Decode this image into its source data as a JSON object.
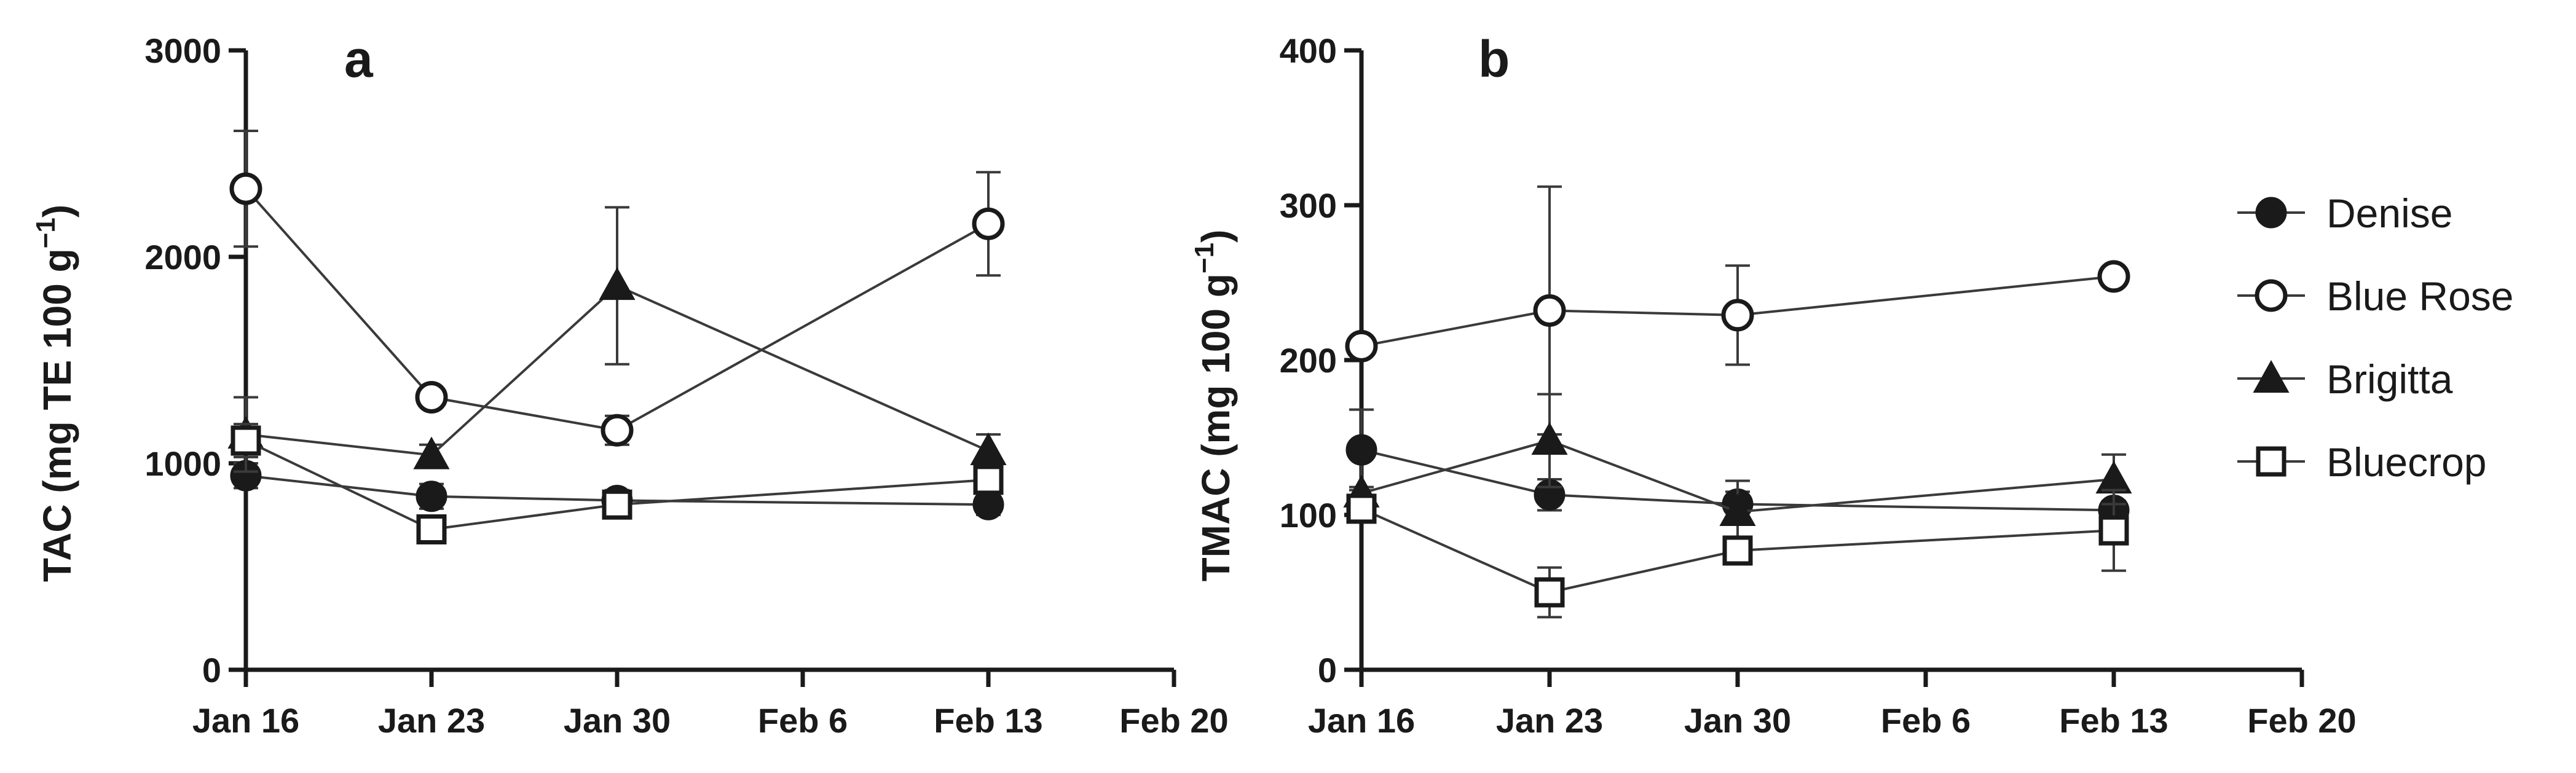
{
  "chart_data": [
    {
      "type": "line",
      "panel_label": "a",
      "title": "",
      "ylabel": "TAC  (mg TE 100 g",
      "ylabel_superscript": "−1",
      "ylabel_suffix": ")",
      "ylim": [
        0,
        3000
      ],
      "yticks": [
        0,
        1000,
        2000,
        3000
      ],
      "ytick_labels": [
        "0",
        "1000",
        "2000",
        "3000"
      ],
      "x_unit": "day",
      "xtick_labels": [
        "Jan 16",
        "Jan 23",
        "Jan 30",
        "Feb 6",
        "Feb 13",
        "Feb 20"
      ],
      "xticks": [
        0,
        7,
        14,
        21,
        28,
        35
      ],
      "xlim": [
        0,
        35
      ],
      "grid": false,
      "series": [
        {
          "name": "Denise",
          "marker": "filled-circle",
          "x": [
            0,
            7,
            14,
            28
          ],
          "y": [
            940,
            840,
            820,
            800
          ],
          "err": [
            60,
            60,
            50,
            50
          ]
        },
        {
          "name": "Blue Rose",
          "marker": "open-circle",
          "x": [
            0,
            7,
            14,
            28
          ],
          "y": [
            2330,
            1320,
            1160,
            2160
          ],
          "err": [
            280,
            40,
            70,
            250
          ]
        },
        {
          "name": "Brigitta",
          "marker": "filled-triangle",
          "x": [
            0,
            7,
            14,
            28
          ],
          "y": [
            1140,
            1040,
            1860,
            1060
          ],
          "err": [
            180,
            50,
            380,
            80
          ]
        },
        {
          "name": "Bluecrop",
          "marker": "open-square",
          "x": [
            0,
            7,
            14,
            28
          ],
          "y": [
            1110,
            680,
            800,
            920
          ],
          "err": [
            80,
            60,
            40,
            50
          ]
        }
      ]
    },
    {
      "type": "line",
      "panel_label": "b",
      "title": "",
      "ylabel": "TMAC (mg 100 g",
      "ylabel_superscript": "−1",
      "ylabel_suffix": ")",
      "ylim": [
        0,
        400
      ],
      "yticks": [
        0,
        100,
        200,
        300,
        400
      ],
      "ytick_labels": [
        "0",
        "100",
        "200",
        "300",
        "400"
      ],
      "x_unit": "day",
      "xtick_labels": [
        "Jan 16",
        "Jan 23",
        "Jan 30",
        "Feb 6",
        "Feb 13",
        "Feb 20"
      ],
      "xticks": [
        0,
        7,
        14,
        21,
        28,
        35
      ],
      "xlim": [
        0,
        35
      ],
      "grid": false,
      "series": [
        {
          "name": "Denise",
          "marker": "filled-circle",
          "x": [
            0,
            7,
            14,
            28
          ],
          "y": [
            142,
            113,
            107,
            103
          ],
          "err": [
            26,
            10,
            8,
            6
          ]
        },
        {
          "name": "Blue Rose",
          "marker": "open-circle",
          "x": [
            0,
            7,
            14,
            28
          ],
          "y": [
            209,
            232,
            229,
            254
          ],
          "err": [
            4,
            80,
            32,
            3
          ]
        },
        {
          "name": "Brigitta",
          "marker": "filled-triangle",
          "x": [
            0,
            7,
            14,
            28
          ],
          "y": [
            114,
            148,
            102,
            123
          ],
          "err": [
            4,
            30,
            20,
            16
          ]
        },
        {
          "name": "Bluecrop",
          "marker": "open-square",
          "x": [
            0,
            7,
            14,
            28
          ],
          "y": [
            104,
            50,
            77,
            90
          ],
          "err": [
            6,
            16,
            6,
            26
          ]
        }
      ]
    }
  ],
  "legend": {
    "placement": "right",
    "items": [
      {
        "label": "Denise",
        "marker": "filled-circle"
      },
      {
        "label": "Blue Rose",
        "marker": "open-circle"
      },
      {
        "label": "Brigitta",
        "marker": "filled-triangle"
      },
      {
        "label": "Bluecrop",
        "marker": "open-square"
      }
    ]
  },
  "colors": {
    "ink": "#1a1a1a",
    "line": "#3a3a3a",
    "marker_fill_open": "#ffffff"
  }
}
